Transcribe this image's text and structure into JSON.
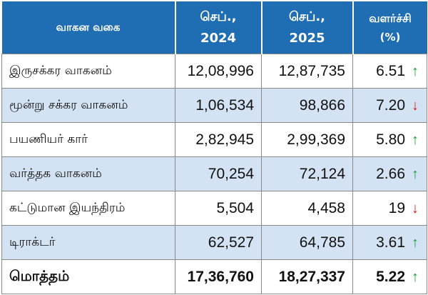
{
  "header": {
    "vehicle_type": "வாகன வகை",
    "sep2024_line1": "செப்.,",
    "sep2024_line2": "2024",
    "sep2025_line1": "செப்.,",
    "sep2025_line2": "2025",
    "growth_line1": "வளர்ச்சி",
    "growth_line2": "(%)"
  },
  "rows": [
    {
      "name": "இருசக்கர வாகனம்",
      "v2024": "12,08,996",
      "v2025": "12,87,735",
      "growth": "6.51",
      "arrow_icon": "arrow-up-icon"
    },
    {
      "name": "மூன்று சக்கர வாகனம்",
      "v2024": "1,06,534",
      "v2025": "98,866",
      "growth": "7.20",
      "arrow_icon": "arrow-down-icon"
    },
    {
      "name": "பயணியர் கார்",
      "v2024": "2,82,945",
      "v2025": "2,99,369",
      "growth": "5.80",
      "arrow_icon": "arrow-up-icon"
    },
    {
      "name": "வர்த்தக வாகனம்",
      "v2024": "70,254",
      "v2025": "72,124",
      "growth": "2.66",
      "arrow_icon": "arrow-up-icon"
    },
    {
      "name": "கட்டுமான இயந்திரம்",
      "v2024": "5,504",
      "v2025": "4,458",
      "growth": "19",
      "arrow_icon": "arrow-down-icon"
    },
    {
      "name": "டிராக்டர்",
      "v2024": "62,527",
      "v2025": "64,785",
      "growth": "3.61",
      "arrow_icon": "arrow-up-icon"
    }
  ],
  "total": {
    "name": "மொத்தம்",
    "v2024": "17,36,760",
    "v2025": "18,27,337",
    "growth": "5.22",
    "arrow_icon": "arrow-up-icon"
  },
  "colors": {
    "header_bg": "#1f6db3",
    "stripe_bg": "#d4e3f3",
    "up": "#1a9a3a",
    "down": "#d42020"
  }
}
